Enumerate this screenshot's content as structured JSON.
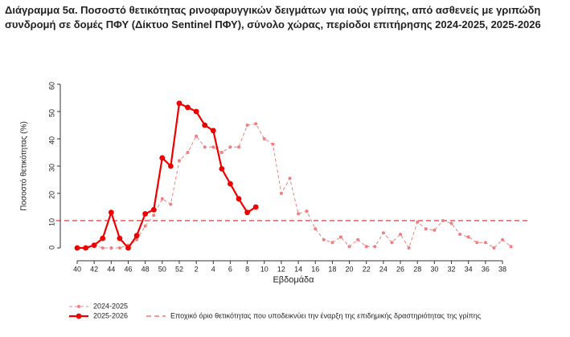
{
  "chart_data": {
    "type": "line",
    "title": "Διάγραμμα 5α. Ποσοστό θετικότητας ρινοφαρυγγικών δειγμάτων για ιούς γρίπης, από ασθενείς με γριπώδη συνδρομή σε δομές ΠΦΥ (Δίκτυο Sentinel ΠΦΥ), σύνολο χώρας, περίοδοι επιτήρησης 2024-2025, 2025-2026",
    "x_label": "Εβδομάδα",
    "y_label": "Ποσοστό θετικότητας (%)",
    "categories": [
      "40",
      null,
      "42",
      null,
      "44",
      null,
      "46",
      null,
      "48",
      null,
      "50",
      null,
      "52",
      null,
      "2",
      null,
      "4",
      null,
      "6",
      null,
      "8",
      null,
      "10",
      null,
      "12",
      null,
      "14",
      null,
      "16",
      null,
      "18",
      null,
      "20",
      null,
      "22",
      null,
      "24",
      null,
      "26",
      null,
      "28",
      null,
      "30",
      null,
      "32",
      null,
      "34",
      null,
      "36",
      null,
      "38",
      null
    ],
    "series": [
      {
        "name": "2024-2025",
        "color": "#f08080",
        "values": [
          0,
          0,
          1,
          0,
          0,
          0,
          1,
          3,
          8,
          12,
          18,
          16,
          32,
          35,
          41,
          37,
          37,
          35,
          37,
          37,
          45,
          45.5,
          40,
          38,
          20,
          25.5,
          12.5,
          13.5,
          7,
          3,
          2,
          4,
          0.5,
          3,
          0.5,
          0.5,
          5.5,
          2,
          5,
          0,
          9.5,
          7,
          6.5,
          10,
          9,
          5,
          4,
          2,
          2,
          0,
          3,
          0.5
        ]
      },
      {
        "name": "2025-2026",
        "color": "#ee0000",
        "values": [
          0,
          0,
          1,
          3.5,
          13,
          3.5,
          0,
          4.5,
          12.5,
          14,
          33,
          30,
          53,
          51.5,
          50,
          45,
          43,
          29,
          23.5,
          18,
          13,
          15,
          null,
          null,
          null,
          null,
          null,
          null,
          null,
          null,
          null,
          null,
          null,
          null,
          null,
          null,
          null,
          null,
          null,
          null,
          null,
          null,
          null,
          null,
          null,
          null,
          null,
          null,
          null,
          null,
          null,
          null
        ]
      }
    ],
    "threshold": 10,
    "threshold_label": "Εποχικό όριο θετικότητας που υποδεικνύει την έναρξη της επιδημικής δραστηριότητας της γρίπης",
    "threshold_color": "#ee3333",
    "ylim": [
      0,
      60
    ],
    "yticks": [
      0,
      10,
      20,
      30,
      40,
      50,
      60
    ]
  }
}
